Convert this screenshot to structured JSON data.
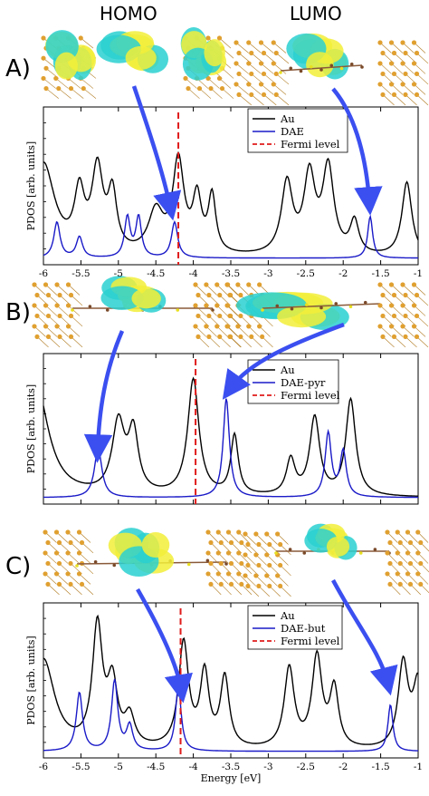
{
  "headers": {
    "homo": "HOMO",
    "lumo": "LUMO"
  },
  "panels": [
    {
      "letter": "A)",
      "legend": [
        "Au",
        "DAE",
        "Fermi level"
      ]
    },
    {
      "letter": "B)",
      "legend": [
        "Au",
        "DAE-pyr",
        "Fermi level"
      ]
    },
    {
      "letter": "C)",
      "legend": [
        "Au",
        "DAE-but",
        "Fermi level"
      ]
    }
  ],
  "colors": {
    "au": "#000000",
    "molecule": "#1a1ac8",
    "fermi": "#e01b1b",
    "arrow": "#3b4ff0",
    "orbital_yellow": "#f2ee3a",
    "orbital_cyan": "#2ad0d0",
    "gold_atoms": "#e0a030"
  },
  "chart_data": [
    {
      "type": "line",
      "ylabel": "PDOS [arb. units]",
      "xlim": [
        -6,
        -1
      ],
      "x_ticks": [
        -6,
        -5.5,
        -5,
        -4.5,
        -4,
        -3.5,
        -3,
        -2.5,
        -2,
        -1.5,
        -1
      ],
      "fermi_level": -4.2,
      "series": [
        {
          "name": "Au",
          "peaks": [
            [
              -6.0,
              0.62,
              0.18
            ],
            [
              -5.52,
              0.38,
              0.08
            ],
            [
              -5.28,
              0.55,
              0.09
            ],
            [
              -5.08,
              0.38,
              0.07
            ],
            [
              -4.5,
              0.28,
              0.12
            ],
            [
              -4.2,
              0.62,
              0.09
            ],
            [
              -3.95,
              0.36,
              0.07
            ],
            [
              -3.75,
              0.38,
              0.06
            ],
            [
              -2.75,
              0.48,
              0.09
            ],
            [
              -2.45,
              0.52,
              0.09
            ],
            [
              -2.2,
              0.58,
              0.09
            ],
            [
              -1.85,
              0.22,
              0.07
            ],
            [
              -1.15,
              0.5,
              0.08
            ]
          ]
        },
        {
          "name": "DAE",
          "peaks": [
            [
              -5.82,
              0.24,
              0.05
            ],
            [
              -5.52,
              0.14,
              0.05
            ],
            [
              -4.88,
              0.27,
              0.045
            ],
            [
              -4.73,
              0.27,
              0.045
            ],
            [
              -4.25,
              0.24,
              0.05
            ],
            [
              -1.64,
              0.28,
              0.04
            ]
          ]
        }
      ]
    },
    {
      "type": "line",
      "ylabel": "PDOS [arb. units]",
      "xlim": [
        -6,
        -1
      ],
      "x_ticks": [],
      "fermi_level": -3.97,
      "series": [
        {
          "name": "Au",
          "peaks": [
            [
              -6.1,
              0.8,
              0.2
            ],
            [
              -5.0,
              0.5,
              0.1
            ],
            [
              -4.8,
              0.42,
              0.08
            ],
            [
              -4.0,
              0.82,
              0.09
            ],
            [
              -3.45,
              0.42,
              0.06
            ],
            [
              -2.7,
              0.25,
              0.07
            ],
            [
              -2.38,
              0.55,
              0.08
            ],
            [
              -1.9,
              0.68,
              0.08
            ]
          ]
        },
        {
          "name": "DAE-pyr",
          "peaks": [
            [
              -5.27,
              0.35,
              0.06
            ],
            [
              -3.56,
              0.7,
              0.05
            ],
            [
              -2.2,
              0.45,
              0.05
            ],
            [
              -2.0,
              0.32,
              0.05
            ]
          ]
        }
      ]
    },
    {
      "type": "line",
      "ylabel": "PDOS [arb. units]",
      "xlabel": "Energy [eV]",
      "xlim": [
        -6,
        -1
      ],
      "x_ticks": [
        -6,
        -5.5,
        -5,
        -4.5,
        -4,
        -3.5,
        -3,
        -2.5,
        -2,
        -1.5,
        -1
      ],
      "fermi_level": -4.17,
      "series": [
        {
          "name": "Au",
          "peaks": [
            [
              -6.0,
              0.62,
              0.18
            ],
            [
              -5.28,
              0.82,
              0.08
            ],
            [
              -5.08,
              0.42,
              0.08
            ],
            [
              -4.85,
              0.2,
              0.08
            ],
            [
              -4.13,
              0.72,
              0.08
            ],
            [
              -3.85,
              0.5,
              0.07
            ],
            [
              -3.58,
              0.48,
              0.07
            ],
            [
              -2.72,
              0.55,
              0.08
            ],
            [
              -2.35,
              0.62,
              0.08
            ],
            [
              -2.12,
              0.4,
              0.07
            ],
            [
              -1.2,
              0.58,
              0.08
            ],
            [
              -1.0,
              0.45,
              0.08
            ]
          ]
        },
        {
          "name": "DAE-but",
          "peaks": [
            [
              -5.52,
              0.4,
              0.05
            ],
            [
              -5.05,
              0.48,
              0.05
            ],
            [
              -4.85,
              0.17,
              0.05
            ],
            [
              -4.2,
              0.45,
              0.045
            ],
            [
              -1.37,
              0.32,
              0.04
            ]
          ]
        }
      ]
    }
  ]
}
